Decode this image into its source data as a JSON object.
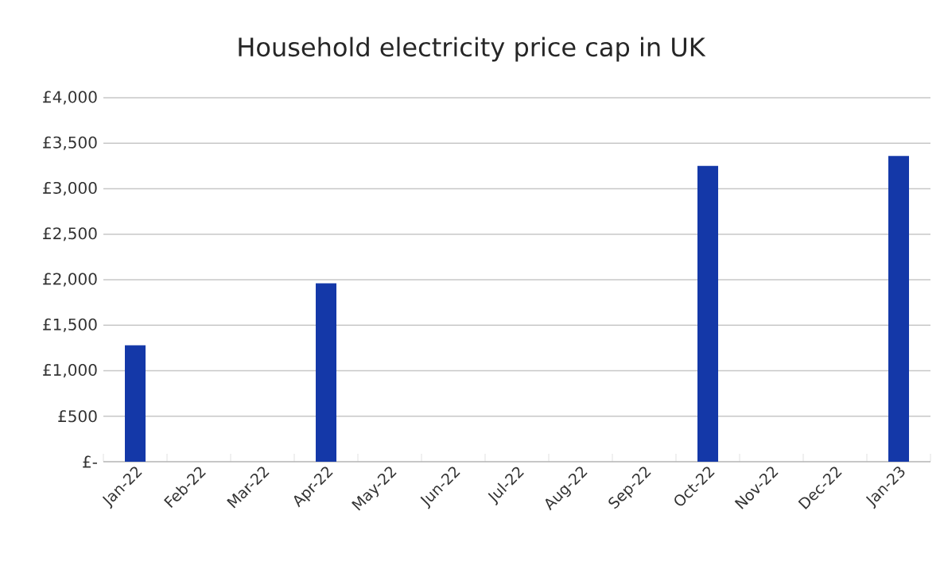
{
  "chart_data": {
    "type": "bar",
    "title": "Household electricity price cap in UK",
    "categories": [
      "Jan-22",
      "Feb-22",
      "Mar-22",
      "Apr-22",
      "May-22",
      "Jun-22",
      "Jul-22",
      "Aug-22",
      "Sep-22",
      "Oct-22",
      "Nov-22",
      "Dec-22",
      "Jan-23"
    ],
    "values": [
      1280,
      null,
      null,
      1960,
      null,
      null,
      null,
      null,
      null,
      3250,
      null,
      null,
      3360
    ],
    "color": "#1438a8",
    "ylim": [
      0,
      4000
    ],
    "yticks": [
      {
        "value": 0,
        "label": "£-"
      },
      {
        "value": 500,
        "label": "£500"
      },
      {
        "value": 1000,
        "label": "£1,000"
      },
      {
        "value": 1500,
        "label": "£1,500"
      },
      {
        "value": 2000,
        "label": "£2,000"
      },
      {
        "value": 2500,
        "label": "£2,500"
      },
      {
        "value": 3000,
        "label": "£3,000"
      },
      {
        "value": 3500,
        "label": "£3,500"
      },
      {
        "value": 4000,
        "label": "£4,000"
      }
    ],
    "grid": "y"
  }
}
